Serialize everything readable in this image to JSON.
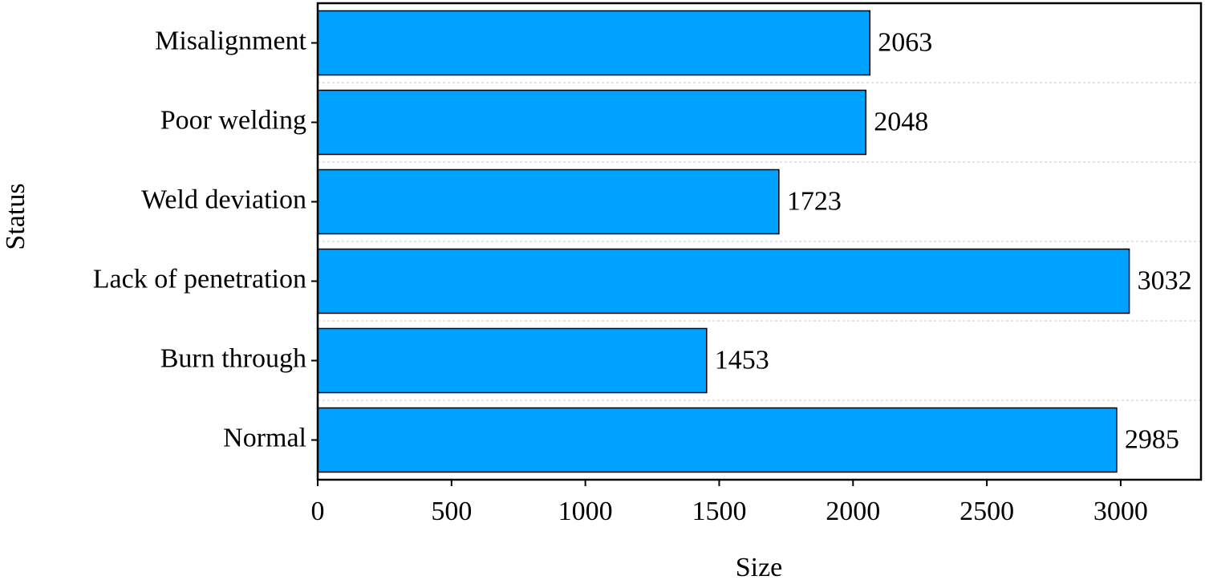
{
  "chart_data": {
    "type": "hbar",
    "x_label": "Size",
    "y_label": "Status",
    "categories": [
      "Misalignment",
      "Poor welding",
      "Weld deviation",
      "Lack of penetration",
      "Burn through",
      "Normal"
    ],
    "values": [
      2063,
      2048,
      1723,
      3032,
      1453,
      2985
    ],
    "color": "#00a2ff",
    "xlim": [
      0,
      3300
    ],
    "xticks": [
      0,
      500,
      1000,
      1500,
      2000,
      2500,
      3000
    ]
  }
}
